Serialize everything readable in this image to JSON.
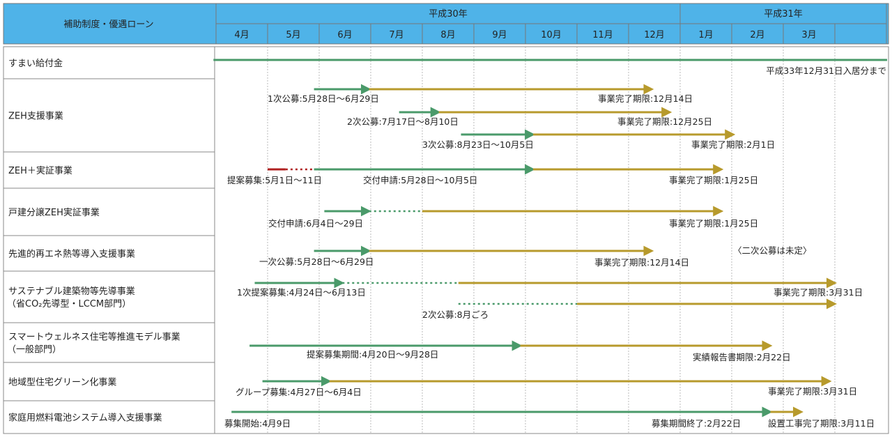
{
  "header": {
    "category_label": "補助制度・優遇ローン",
    "years": [
      {
        "label": "平成30年",
        "span": [
          0,
          9
        ]
      },
      {
        "label": "平成31年",
        "span": [
          9,
          13
        ]
      }
    ],
    "months": [
      "4月",
      "5月",
      "6月",
      "7月",
      "8月",
      "9月",
      "10月",
      "11月",
      "12月",
      "1月",
      "2月",
      "3月",
      ""
    ]
  },
  "colors": {
    "header_bg": "#4fb3e8",
    "green": "#4a9a6a",
    "gold": "#b79a2c",
    "red": "#b02020",
    "grid": "#999999"
  },
  "rows": [
    {
      "label": "すまい給付金",
      "label2": ""
    },
    {
      "label": "ZEH支援事業",
      "label2": ""
    },
    {
      "label": "ZEH＋実証事業",
      "label2": ""
    },
    {
      "label": "戸建分譲ZEH実証事業",
      "label2": ""
    },
    {
      "label": "先進的再エネ熱等導入支援事業",
      "label2": ""
    },
    {
      "label": "サステナブル建築物等先導事業",
      "label2": "（省CO₂先導型・LCCM部門）"
    },
    {
      "label": "スマートウェルネス住宅等推進モデル事業",
      "label2": "（一般部門）"
    },
    {
      "label": "地域型住宅グリーン化事業",
      "label2": ""
    },
    {
      "label": "家庭用燃料電池システム導入支援事業",
      "label2": ""
    }
  ],
  "annotations": [
    {
      "row": 0,
      "text": "平成33年12月31日入居分まで"
    },
    {
      "row": 1,
      "text": "1次公募:5月28日～6月29日"
    },
    {
      "row": 1,
      "text": "事業完了期限:12月14日"
    },
    {
      "row": 1,
      "text": "2次公募:7月17日～8月10日"
    },
    {
      "row": 1,
      "text": "事業完了期限:12月25日"
    },
    {
      "row": 1,
      "text": "3次公募:8月23日～10月5日"
    },
    {
      "row": 1,
      "text": "事業完了期限:2月1日"
    },
    {
      "row": 2,
      "text": "提案募集:5月1日～11日"
    },
    {
      "row": 2,
      "text": "交付申請:5月28日～10月5日"
    },
    {
      "row": 2,
      "text": "事業完了期限:1月25日"
    },
    {
      "row": 3,
      "text": "交付申請:6月4日～29日"
    },
    {
      "row": 3,
      "text": "事業完了期限:1月25日"
    },
    {
      "row": 4,
      "text": "一次公募:5月28日～6月29日"
    },
    {
      "row": 4,
      "text": "事業完了期限:12月14日"
    },
    {
      "row": 4,
      "text": "〈二次公募は未定〉"
    },
    {
      "row": 5,
      "text": "1次提案募集:4月24日～6月13日"
    },
    {
      "row": 5,
      "text": "事業完了期限:3月31日"
    },
    {
      "row": 5,
      "text": "2次公募:8月ごろ"
    },
    {
      "row": 6,
      "text": "提案募集期間:4月20日～9月28日"
    },
    {
      "row": 6,
      "text": "実績報告書期限:2月22日"
    },
    {
      "row": 7,
      "text": "グループ募集:4月27日～6月4日"
    },
    {
      "row": 7,
      "text": "事業完了期限:3月31日"
    },
    {
      "row": 8,
      "text": "募集開始:4月9日"
    },
    {
      "row": 8,
      "text": "募集期間終了:2月22日"
    },
    {
      "row": 8,
      "text": "設置工事完了期限:3月11日"
    }
  ],
  "segments": [
    {
      "row": 0,
      "start": -0.05,
      "end": 13.1,
      "color": "green",
      "style": "solid",
      "arrow": false
    },
    {
      "row": 1,
      "start": 1.9,
      "end": 2.97,
      "color": "green",
      "style": "solid",
      "arrow": true
    },
    {
      "row": 1,
      "start": 2.97,
      "end": 8.45,
      "color": "gold",
      "style": "solid",
      "arrow": true
    },
    {
      "row": 1,
      "start": 3.55,
      "end": 4.32,
      "color": "green",
      "style": "solid",
      "arrow": true
    },
    {
      "row": 1,
      "start": 4.32,
      "end": 8.8,
      "color": "gold",
      "style": "solid",
      "arrow": true
    },
    {
      "row": 1,
      "start": 4.75,
      "end": 6.15,
      "color": "green",
      "style": "solid",
      "arrow": true
    },
    {
      "row": 1,
      "start": 6.15,
      "end": 10.03,
      "color": "gold",
      "style": "solid",
      "arrow": true
    },
    {
      "row": 2,
      "start": 1.0,
      "end": 1.35,
      "color": "red",
      "style": "solid",
      "arrow": false
    },
    {
      "row": 2,
      "start": 1.35,
      "end": 1.9,
      "color": "red",
      "style": "dotted",
      "arrow": false
    },
    {
      "row": 2,
      "start": 1.9,
      "end": 6.15,
      "color": "green",
      "style": "solid",
      "arrow": true
    },
    {
      "row": 2,
      "start": 6.15,
      "end": 9.8,
      "color": "gold",
      "style": "solid",
      "arrow": true
    },
    {
      "row": 3,
      "start": 2.1,
      "end": 2.97,
      "color": "green",
      "style": "solid",
      "arrow": true
    },
    {
      "row": 3,
      "start": 2.97,
      "end": 4.0,
      "color": "green",
      "style": "dotted",
      "arrow": false
    },
    {
      "row": 3,
      "start": 4.0,
      "end": 9.8,
      "color": "gold",
      "style": "solid",
      "arrow": true
    },
    {
      "row": 4,
      "start": 1.9,
      "end": 2.97,
      "color": "green",
      "style": "solid",
      "arrow": true
    },
    {
      "row": 4,
      "start": 2.97,
      "end": 8.45,
      "color": "gold",
      "style": "solid",
      "arrow": true
    },
    {
      "row": 5,
      "start": 0.75,
      "end": 2.45,
      "color": "green",
      "style": "solid",
      "arrow": true
    },
    {
      "row": 5,
      "start": 2.45,
      "end": 4.7,
      "color": "green",
      "style": "dotted",
      "arrow": false
    },
    {
      "row": 5,
      "start": 4.7,
      "end": 12.0,
      "color": "gold",
      "style": "solid",
      "arrow": true
    },
    {
      "row": 5,
      "start": 4.7,
      "end": 7.0,
      "color": "green",
      "style": "dotted",
      "arrow": false
    },
    {
      "row": 5,
      "start": 7.0,
      "end": 12.0,
      "color": "gold",
      "style": "solid",
      "arrow": true
    },
    {
      "row": 6,
      "start": 0.65,
      "end": 5.9,
      "color": "green",
      "style": "solid",
      "arrow": true
    },
    {
      "row": 6,
      "start": 5.9,
      "end": 10.75,
      "color": "gold",
      "style": "solid",
      "arrow": true
    },
    {
      "row": 7,
      "start": 0.9,
      "end": 2.2,
      "color": "green",
      "style": "solid",
      "arrow": true
    },
    {
      "row": 7,
      "start": 2.2,
      "end": 11.9,
      "color": "gold",
      "style": "solid",
      "arrow": true
    },
    {
      "row": 8,
      "start": 0.3,
      "end": 10.75,
      "color": "green",
      "style": "solid",
      "arrow": true
    },
    {
      "row": 8,
      "start": 10.75,
      "end": 11.35,
      "color": "gold",
      "style": "solid",
      "arrow": true
    }
  ]
}
